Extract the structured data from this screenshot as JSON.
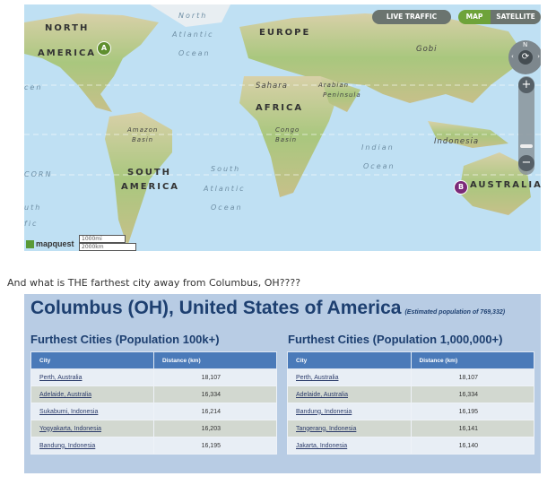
{
  "map": {
    "buttons": {
      "live_traffic": "LIVE TRAFFIC",
      "map": "MAP",
      "satellite": "SATELLITE"
    },
    "compass": {
      "north": "N"
    },
    "zoom": {
      "in": "+",
      "out": "−"
    },
    "labels": {
      "north": "NORTH",
      "america": "AMERICA",
      "north_atlantic": [
        "North",
        "Atlantic",
        "Ocean"
      ],
      "europe": "EUROPE",
      "gobi": "Gobi",
      "sahara": "Sahara",
      "arabian": [
        "Arabian",
        "Peninsula"
      ],
      "africa": "AFRICA",
      "amazon": [
        "Amazon",
        "Basin"
      ],
      "congo": [
        "Congo",
        "Basin"
      ],
      "indian": [
        "Indian",
        "Ocean"
      ],
      "indonesia": "Indonesia",
      "south": "SOUTH",
      "south_america": "AMERICA",
      "south_atlantic": [
        "South",
        "Atlantic",
        "Ocean"
      ],
      "australia": "AUSTRALIA",
      "edge1": "cen",
      "edge2": "CORN",
      "edge3": "uth",
      "edge4": "fic"
    },
    "markers": [
      {
        "label": "A",
        "color": "#5f8f2e"
      },
      {
        "label": "B",
        "color": "#7b2a78"
      }
    ],
    "logo": "mapquest",
    "scale": {
      "mi": "1000mi",
      "km": "2000km"
    }
  },
  "intro": "And what is THE farthest city away from Columbus, OH????",
  "panel": {
    "title": "Columbus (OH), United States of America",
    "population": "(Estimated population of 769,332)",
    "tables": [
      {
        "heading": "Furthest Cities (Population 100k+)",
        "columns": [
          "City",
          "Distance (km)"
        ],
        "rows": [
          [
            "Perth, Australia",
            "18,107"
          ],
          [
            "Adelaide, Australia",
            "16,334"
          ],
          [
            "Sukabumi, Indonesia",
            "16,214"
          ],
          [
            "Yogyakarta, Indonesia",
            "16,203"
          ],
          [
            "Bandung, Indonesia",
            "16,195"
          ]
        ]
      },
      {
        "heading": "Furthest Cities (Population 1,000,000+)",
        "columns": [
          "City",
          "Distance (km)"
        ],
        "rows": [
          [
            "Perth, Australia",
            "18,107"
          ],
          [
            "Adelaide, Australia",
            "16,334"
          ],
          [
            "Bandung, Indonesia",
            "16,195"
          ],
          [
            "Tangerang, Indonesia",
            "16,141"
          ],
          [
            "Jakarta, Indonesia",
            "16,140"
          ]
        ]
      }
    ]
  }
}
